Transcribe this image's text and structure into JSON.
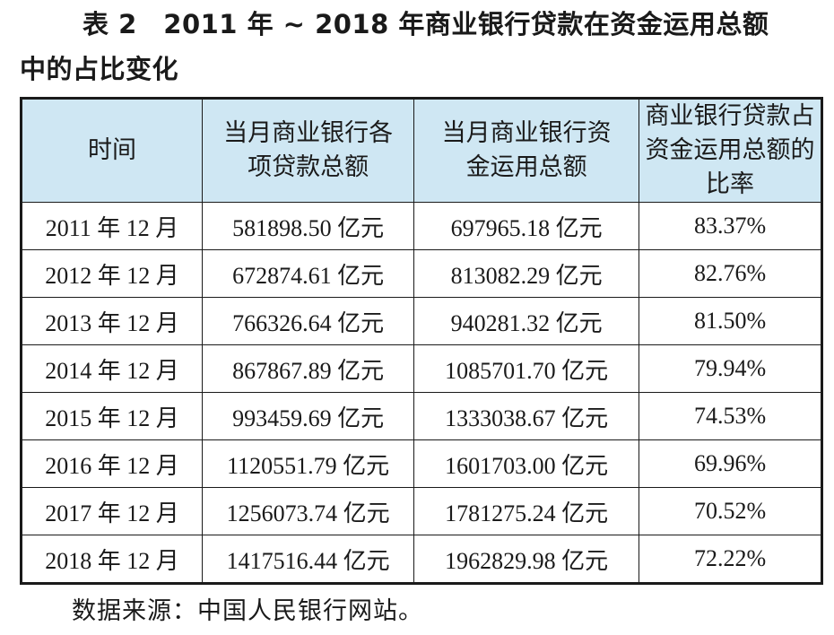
{
  "caption": {
    "line1": "表 2　2011 年 ~ 2018 年商业银行贷款在资金运用总额",
    "line2": "中的占比变化"
  },
  "table": {
    "headers": [
      "时间",
      "当月商业银行各项贷款总额",
      "当月商业银行资金运用总额",
      "商业银行贷款占资金运用总额的比率"
    ],
    "rows": [
      [
        "2011 年 12 月",
        "581898.50 亿元",
        "697965.18 亿元",
        "83.37%"
      ],
      [
        "2012 年 12 月",
        "672874.61 亿元",
        "813082.29 亿元",
        "82.76%"
      ],
      [
        "2013 年 12 月",
        "766326.64 亿元",
        "940281.32 亿元",
        "81.50%"
      ],
      [
        "2014 年 12 月",
        "867867.89 亿元",
        "1085701.70 亿元",
        "79.94%"
      ],
      [
        "2015 年 12 月",
        "993459.69 亿元",
        "1333038.67 亿元",
        "74.53%"
      ],
      [
        "2016 年 12 月",
        "1120551.79 亿元",
        "1601703.00 亿元",
        "69.96%"
      ],
      [
        "2017 年 12 月",
        "1256073.74 亿元",
        "1781275.24 亿元",
        "70.52%"
      ],
      [
        "2018 年 12 月",
        "1417516.44 亿元",
        "1962829.98 亿元",
        "72.22%"
      ]
    ],
    "header_bg": "#cfe7f3"
  },
  "source": "数据来源：中国人民银行网站。"
}
